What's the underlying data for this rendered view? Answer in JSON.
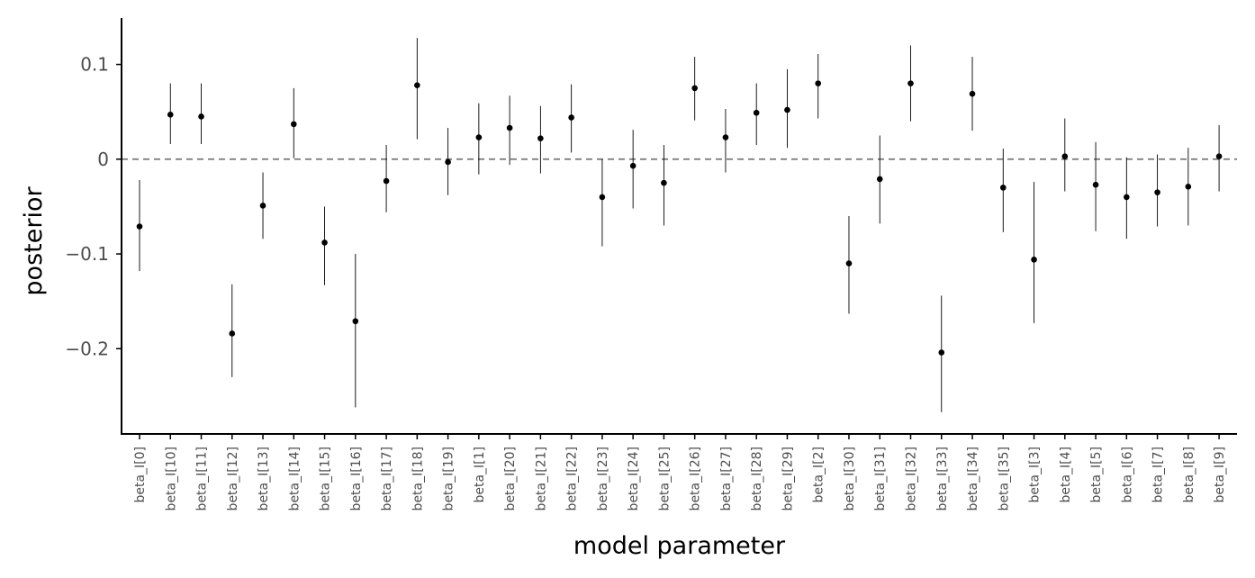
{
  "chart_data": {
    "type": "scatter",
    "xlabel": "model parameter",
    "ylabel": "posterior",
    "ylim": [
      -0.29,
      0.149
    ],
    "yticks": [
      0.1,
      0,
      -0.1,
      -0.2
    ],
    "ytick_labels": [
      "0.1",
      "0",
      "−0.1",
      "−0.2"
    ],
    "reference_line": 0,
    "grid": false,
    "categories": [
      "beta_I[0]",
      "beta_I[10]",
      "beta_I[11]",
      "beta_I[12]",
      "beta_I[13]",
      "beta_I[14]",
      "beta_I[15]",
      "beta_I[16]",
      "beta_I[17]",
      "beta_I[18]",
      "beta_I[19]",
      "beta_I[1]",
      "beta_I[20]",
      "beta_I[21]",
      "beta_I[22]",
      "beta_I[23]",
      "beta_I[24]",
      "beta_I[25]",
      "beta_I[26]",
      "beta_I[27]",
      "beta_I[28]",
      "beta_I[29]",
      "beta_I[2]",
      "beta_I[30]",
      "beta_I[31]",
      "beta_I[32]",
      "beta_I[33]",
      "beta_I[34]",
      "beta_I[35]",
      "beta_I[3]",
      "beta_I[4]",
      "beta_I[5]",
      "beta_I[6]",
      "beta_I[7]",
      "beta_I[8]",
      "beta_I[9]"
    ],
    "series": [
      {
        "values": [
          -0.071,
          0.047,
          0.045,
          -0.184,
          -0.049,
          0.037,
          -0.088,
          -0.171,
          -0.023,
          0.078,
          -0.003,
          0.023,
          0.033,
          0.022,
          0.044,
          -0.04,
          -0.007,
          -0.025,
          0.075,
          0.023,
          0.049,
          0.052,
          0.08,
          -0.11,
          -0.021,
          0.08,
          -0.204,
          0.069,
          -0.03,
          -0.106,
          0.003,
          -0.027,
          -0.04,
          -0.035,
          -0.029,
          0.003
        ],
        "lower": [
          -0.118,
          0.016,
          0.016,
          -0.23,
          -0.084,
          0.001,
          -0.133,
          -0.262,
          -0.056,
          0.021,
          -0.038,
          -0.016,
          -0.006,
          -0.015,
          0.007,
          -0.092,
          -0.052,
          -0.07,
          0.041,
          -0.014,
          0.015,
          0.012,
          0.043,
          -0.163,
          -0.068,
          0.04,
          -0.267,
          0.03,
          -0.077,
          -0.173,
          -0.034,
          -0.076,
          -0.084,
          -0.071,
          -0.07,
          -0.034
        ],
        "upper": [
          -0.022,
          0.08,
          0.08,
          -0.132,
          -0.014,
          0.075,
          -0.05,
          -0.1,
          0.015,
          0.128,
          0.033,
          0.059,
          0.067,
          0.056,
          0.079,
          0.0,
          0.031,
          0.015,
          0.108,
          0.053,
          0.08,
          0.095,
          0.111,
          -0.06,
          0.025,
          0.12,
          -0.144,
          0.108,
          0.011,
          -0.024,
          0.043,
          0.018,
          0.002,
          0.005,
          0.012,
          0.036
        ]
      }
    ]
  }
}
